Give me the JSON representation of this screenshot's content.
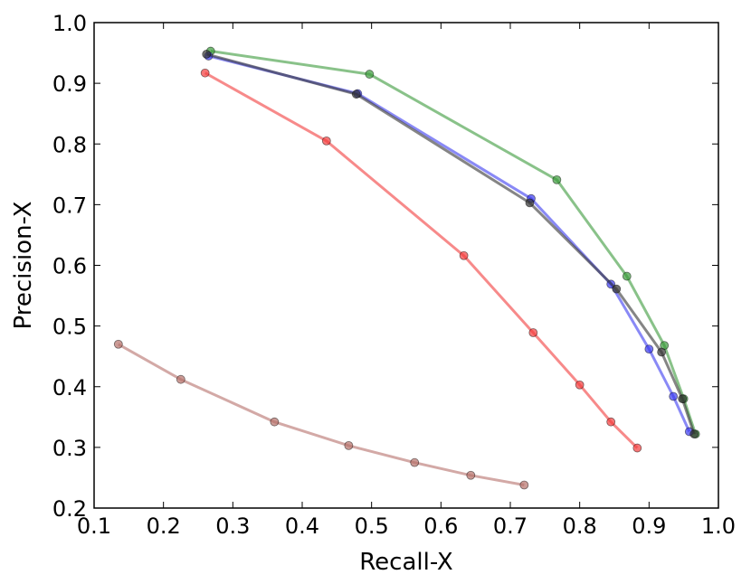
{
  "chart_data": {
    "type": "line",
    "xlabel": "Recall-X",
    "ylabel": "Precision-X",
    "xlim": [
      0.1,
      1.0
    ],
    "ylim": [
      0.2,
      1.0
    ],
    "xticks": [
      "0.1",
      "0.2",
      "0.3",
      "0.4",
      "0.5",
      "0.6",
      "0.7",
      "0.8",
      "0.9",
      "1.0"
    ],
    "yticks": [
      "0.2",
      "0.3",
      "0.4",
      "0.5",
      "0.6",
      "0.7",
      "0.8",
      "0.9",
      "1.0"
    ],
    "grid": false,
    "legend": "none",
    "series": [
      {
        "color": "#b5706a",
        "x": [
          0.135,
          0.225,
          0.36,
          0.467,
          0.562,
          0.643,
          0.72
        ],
        "y": [
          0.47,
          0.412,
          0.342,
          0.303,
          0.275,
          0.254,
          0.238
        ]
      },
      {
        "color": "#f23c3c",
        "x": [
          0.26,
          0.435,
          0.633,
          0.733,
          0.8,
          0.845,
          0.883
        ],
        "y": [
          0.917,
          0.805,
          0.616,
          0.489,
          0.403,
          0.342,
          0.299
        ]
      },
      {
        "color": "#3a9a3a",
        "x": [
          0.268,
          0.497,
          0.767,
          0.868,
          0.922,
          0.95,
          0.967
        ],
        "y": [
          0.953,
          0.915,
          0.741,
          0.582,
          0.468,
          0.38,
          0.322
        ]
      },
      {
        "color": "#3b3bf0",
        "x": [
          0.265,
          0.48,
          0.73,
          0.845,
          0.9,
          0.935,
          0.958
        ],
        "y": [
          0.945,
          0.883,
          0.71,
          0.569,
          0.462,
          0.384,
          0.326
        ]
      },
      {
        "color": "#333333",
        "x": [
          0.262,
          0.478,
          0.728,
          0.853,
          0.918,
          0.948,
          0.965
        ],
        "y": [
          0.948,
          0.882,
          0.703,
          0.561,
          0.457,
          0.38,
          0.322
        ]
      }
    ]
  }
}
